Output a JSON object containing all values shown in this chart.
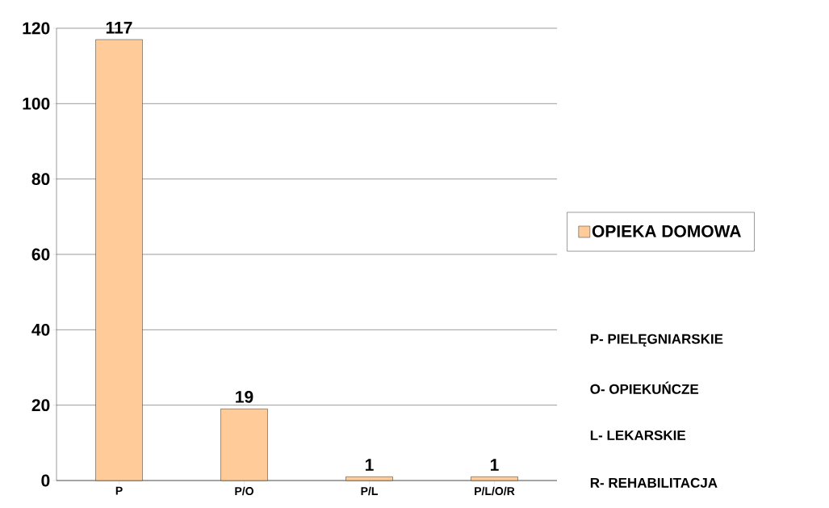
{
  "chart_data": {
    "type": "bar",
    "categories": [
      "P",
      "P/O",
      "P/L",
      "P/L/O/R"
    ],
    "series": [
      {
        "name": "OPIEKA DOMOWA",
        "color": "#ffcc99",
        "values": [
          117,
          19,
          1,
          1
        ]
      }
    ],
    "ylim": [
      0,
      120
    ],
    "yticks": [
      0,
      20,
      40,
      60,
      80,
      100,
      120
    ],
    "grid": "y",
    "legend": "right",
    "data_labels": true,
    "annotations": [
      "P- PIELĘGNIARSKIE",
      "O- OPIEKUŃCZE",
      "L- LEKARSKIE",
      "R- REHABILITACJA"
    ]
  }
}
